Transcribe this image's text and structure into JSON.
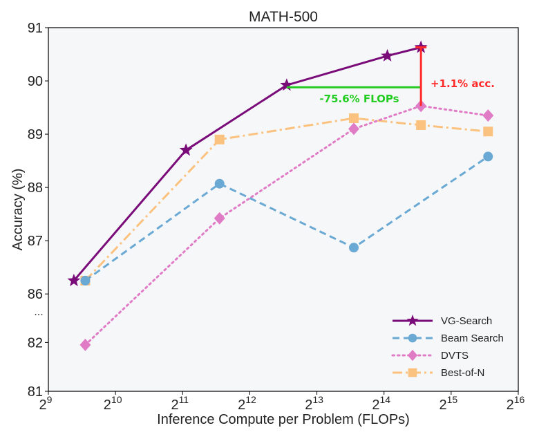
{
  "chart_data": {
    "type": "line",
    "title": "MATH-500",
    "xlabel": "Inference Compute per Problem (FLOPs)",
    "ylabel": "Accuracy (%)",
    "x_scale": "log2",
    "xlim_log2": [
      9,
      16
    ],
    "x_ticks": [
      {
        "base": "2",
        "exp": "9"
      },
      {
        "base": "2",
        "exp": "10"
      },
      {
        "base": "2",
        "exp": "11"
      },
      {
        "base": "2",
        "exp": "12"
      },
      {
        "base": "2",
        "exp": "13"
      },
      {
        "base": "2",
        "exp": "14"
      },
      {
        "base": "2",
        "exp": "15"
      },
      {
        "base": "2",
        "exp": "16"
      }
    ],
    "y_axis_broken": true,
    "y_break_marker": "...",
    "y_lower_segment": {
      "ticks": [
        "81",
        "82"
      ],
      "range": [
        81,
        82.6
      ]
    },
    "y_upper_segment": {
      "ticks": [
        "86",
        "87",
        "88",
        "89",
        "90",
        "91"
      ],
      "range": [
        85.6,
        91
      ]
    },
    "series": [
      {
        "name": "VG-Search",
        "color": "#7a0c7a",
        "marker": "star",
        "dash": "solid",
        "x_log2": [
          9.38,
          11.05,
          12.55,
          14.05,
          14.55
        ],
        "y": [
          86.25,
          88.7,
          89.92,
          90.47,
          90.63
        ]
      },
      {
        "name": "Beam Search",
        "color": "#6aa9d3",
        "marker": "circle",
        "dash": "dashed",
        "x_log2": [
          9.55,
          11.55,
          13.55,
          15.55
        ],
        "y": [
          86.25,
          88.07,
          86.87,
          88.58
        ]
      },
      {
        "name": "DVTS",
        "color": "#e07cc6",
        "marker": "diamond",
        "dash": "dotted",
        "x_log2": [
          9.55,
          11.55,
          13.55,
          14.55,
          15.55
        ],
        "y": [
          81.95,
          87.42,
          89.1,
          89.53,
          89.35
        ]
      },
      {
        "name": "Best-of-N",
        "color": "#fbc27f",
        "marker": "square",
        "dash": "dashdot",
        "x_log2": [
          9.55,
          11.55,
          13.55,
          14.55,
          15.55
        ],
        "y": [
          86.25,
          88.9,
          89.3,
          89.17,
          89.05
        ]
      }
    ],
    "annotations": [
      {
        "text": "-75.6% FLOPs",
        "color": "#22cc22",
        "from": {
          "x_log2": 12.55,
          "y": 89.88
        },
        "to": {
          "x_log2": 14.55,
          "y": 89.88
        }
      },
      {
        "text": "+1.1% acc.",
        "color": "#ff2a2a",
        "from": {
          "x_log2": 14.55,
          "y": 89.53
        },
        "to": {
          "x_log2": 14.55,
          "y": 90.63
        }
      }
    ],
    "legend_position": "lower-right",
    "grid": false
  }
}
